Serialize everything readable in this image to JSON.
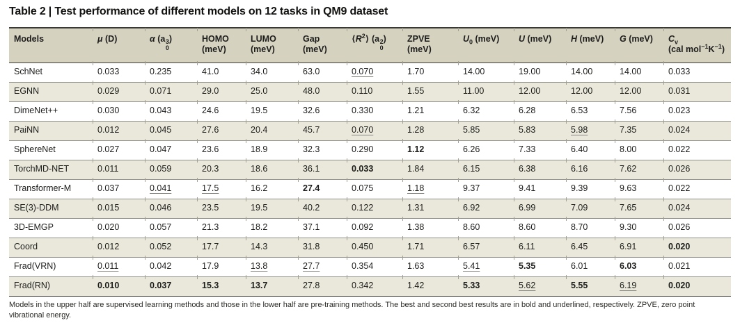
{
  "page": {
    "title": "Table 2 | Test performance of different models on 12 tasks in QM9 dataset",
    "footnote": "Models in the upper half are supervised learning methods and those in the lower half are pre-training methods. The best and second best results are in bold and underlined, respectively. ZPVE, zero point vibrational energy."
  },
  "colors": {
    "header_bg": "#d5d2c0",
    "row_alt_bg": "#eae8db",
    "rule_dark": "#3a3934",
    "rule_gray": "#91908a",
    "tick": "#a39f93",
    "text": "#1d1d1b",
    "underline": "#85837d"
  },
  "table": {
    "columns": [
      {
        "parts": [
          {
            "t": "Models"
          }
        ]
      },
      {
        "parts": [
          {
            "t": "μ",
            "i": true
          },
          {
            "t": " (D)"
          }
        ]
      },
      {
        "parts": [
          {
            "t": "α",
            "i": true
          },
          {
            "t": " ("
          },
          {
            "t": "a",
            "sup": "3",
            "sub": "0"
          },
          {
            "t": ")"
          }
        ]
      },
      {
        "parts": [
          {
            "t": "HOMO"
          }
        ],
        "parts2": [
          {
            "t": "(meV)"
          }
        ]
      },
      {
        "parts": [
          {
            "t": "LUMO"
          }
        ],
        "parts2": [
          {
            "t": "(meV)"
          }
        ]
      },
      {
        "parts": [
          {
            "t": "Gap"
          }
        ],
        "parts2": [
          {
            "t": "(meV)"
          }
        ]
      },
      {
        "parts": [
          {
            "t": "⟨"
          },
          {
            "t": "R",
            "i": true,
            "sup": "2"
          },
          {
            "t": "⟩ ("
          },
          {
            "t": "a",
            "sup": "2",
            "sub": "0"
          },
          {
            "t": ")"
          }
        ]
      },
      {
        "parts": [
          {
            "t": "ZPVE"
          }
        ],
        "parts2": [
          {
            "t": "(meV)"
          }
        ]
      },
      {
        "parts": [
          {
            "t": "U",
            "i": true,
            "sub": "0"
          },
          {
            "t": " (meV)"
          }
        ]
      },
      {
        "parts": [
          {
            "t": "U",
            "i": true
          },
          {
            "t": " (meV)"
          }
        ]
      },
      {
        "parts": [
          {
            "t": "H",
            "i": true
          },
          {
            "t": " (meV)"
          }
        ]
      },
      {
        "parts": [
          {
            "t": "G",
            "i": true
          },
          {
            "t": " (meV)"
          }
        ]
      },
      {
        "parts": [
          {
            "t": "C",
            "i": true,
            "sub": "v"
          }
        ],
        "parts2": [
          {
            "t": "(cal mol"
          },
          {
            "sup": "−1"
          },
          {
            "t": "K"
          },
          {
            "sup": "−1"
          },
          {
            "t": ")"
          }
        ]
      }
    ],
    "rows": [
      {
        "model": "SchNet",
        "cells": [
          "0.033",
          "0.235",
          "41.0",
          "34.0",
          "63.0",
          {
            "v": "0.070",
            "u": true
          },
          "1.70",
          "14.00",
          "19.00",
          "14.00",
          "14.00",
          "0.033"
        ]
      },
      {
        "model": "EGNN",
        "cells": [
          "0.029",
          "0.071",
          "29.0",
          "25.0",
          "48.0",
          "0.110",
          "1.55",
          "11.00",
          "12.00",
          "12.00",
          "12.00",
          "0.031"
        ]
      },
      {
        "model": "DimeNet++",
        "cells": [
          "0.030",
          "0.043",
          "24.6",
          "19.5",
          "32.6",
          "0.330",
          "1.21",
          "6.32",
          "6.28",
          "6.53",
          "7.56",
          "0.023"
        ]
      },
      {
        "model": "PaiNN",
        "cells": [
          "0.012",
          "0.045",
          "27.6",
          "20.4",
          "45.7",
          {
            "v": "0.070",
            "u": true
          },
          "1.28",
          "5.85",
          "5.83",
          {
            "v": "5.98",
            "u": true
          },
          "7.35",
          "0.024"
        ]
      },
      {
        "model": "SphereNet",
        "cells": [
          "0.027",
          "0.047",
          "23.6",
          "18.9",
          "32.3",
          "0.290",
          {
            "v": "1.12",
            "b": true
          },
          "6.26",
          "7.33",
          "6.40",
          "8.00",
          "0.022"
        ]
      },
      {
        "model": "TorchMD-NET",
        "cells": [
          "0.011",
          "0.059",
          "20.3",
          "18.6",
          "36.1",
          {
            "v": "0.033",
            "b": true
          },
          "1.84",
          "6.15",
          "6.38",
          "6.16",
          "7.62",
          "0.026"
        ]
      },
      {
        "model": "Transformer-M",
        "cells": [
          "0.037",
          {
            "v": "0.041",
            "u": true
          },
          {
            "v": "17.5",
            "u": true
          },
          "16.2",
          {
            "v": "27.4",
            "b": true
          },
          "0.075",
          {
            "v": "1.18",
            "u": true
          },
          "9.37",
          "9.41",
          "9.39",
          "9.63",
          "0.022"
        ]
      },
      {
        "model": "SE(3)-DDM",
        "cells": [
          "0.015",
          "0.046",
          "23.5",
          "19.5",
          "40.2",
          "0.122",
          "1.31",
          "6.92",
          "6.99",
          "7.09",
          "7.65",
          "0.024"
        ]
      },
      {
        "model": "3D-EMGP",
        "cells": [
          "0.020",
          "0.057",
          "21.3",
          "18.2",
          "37.1",
          "0.092",
          "1.38",
          "8.60",
          "8.60",
          "8.70",
          "9.30",
          "0.026"
        ]
      },
      {
        "model": "Coord",
        "cells": [
          "0.012",
          "0.052",
          "17.7",
          "14.3",
          "31.8",
          "0.450",
          "1.71",
          "6.57",
          "6.11",
          "6.45",
          "6.91",
          {
            "v": "0.020",
            "b": true
          }
        ]
      },
      {
        "model": "Frad(VRN)",
        "cells": [
          {
            "v": "0.011",
            "u": true
          },
          "0.042",
          "17.9",
          {
            "v": "13.8",
            "u": true
          },
          {
            "v": "27.7",
            "u": true
          },
          "0.354",
          "1.63",
          {
            "v": "5.41",
            "u": true
          },
          {
            "v": "5.35",
            "b": true
          },
          "6.01",
          {
            "v": "6.03",
            "b": true
          },
          "0.021"
        ]
      },
      {
        "model": "Frad(RN)",
        "cells": [
          {
            "v": "0.010",
            "b": true
          },
          {
            "v": "0.037",
            "b": true
          },
          {
            "v": "15.3",
            "b": true
          },
          {
            "v": "13.7",
            "b": true
          },
          "27.8",
          "0.342",
          "1.42",
          {
            "v": "5.33",
            "b": true
          },
          {
            "v": "5.62",
            "u": true
          },
          {
            "v": "5.55",
            "b": true
          },
          {
            "v": "6.19",
            "u": true
          },
          {
            "v": "0.020",
            "b": true
          }
        ]
      }
    ]
  }
}
